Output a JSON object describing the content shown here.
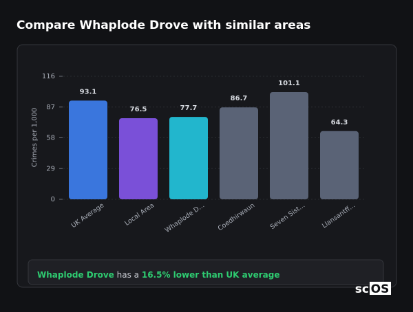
{
  "heading": "Compare Whaplode Drove with similar areas",
  "chart_data": {
    "type": "bar",
    "y_label": "Crimes per 1,000",
    "categories": [
      "UK Average",
      "Local Area",
      "Whaplode D...",
      "Coedhirwaun",
      "Seven Sist...",
      "Llansantff..."
    ],
    "values": [
      93.1,
      76.5,
      77.7,
      86.7,
      101.1,
      64.3
    ],
    "colors": [
      "#3a76dd",
      "#7a50d8",
      "#22b6cd",
      "#5a6376",
      "#5a6376",
      "#5a6376"
    ],
    "ylim": [
      0,
      116
    ],
    "yticks": [
      0,
      29,
      58,
      87,
      116
    ],
    "grid": true
  },
  "note": {
    "place": "Whaplode Drove",
    "middle": " has a ",
    "comparison": "16.5% lower than UK average"
  },
  "logo": {
    "left": "sc",
    "right": "OS"
  }
}
